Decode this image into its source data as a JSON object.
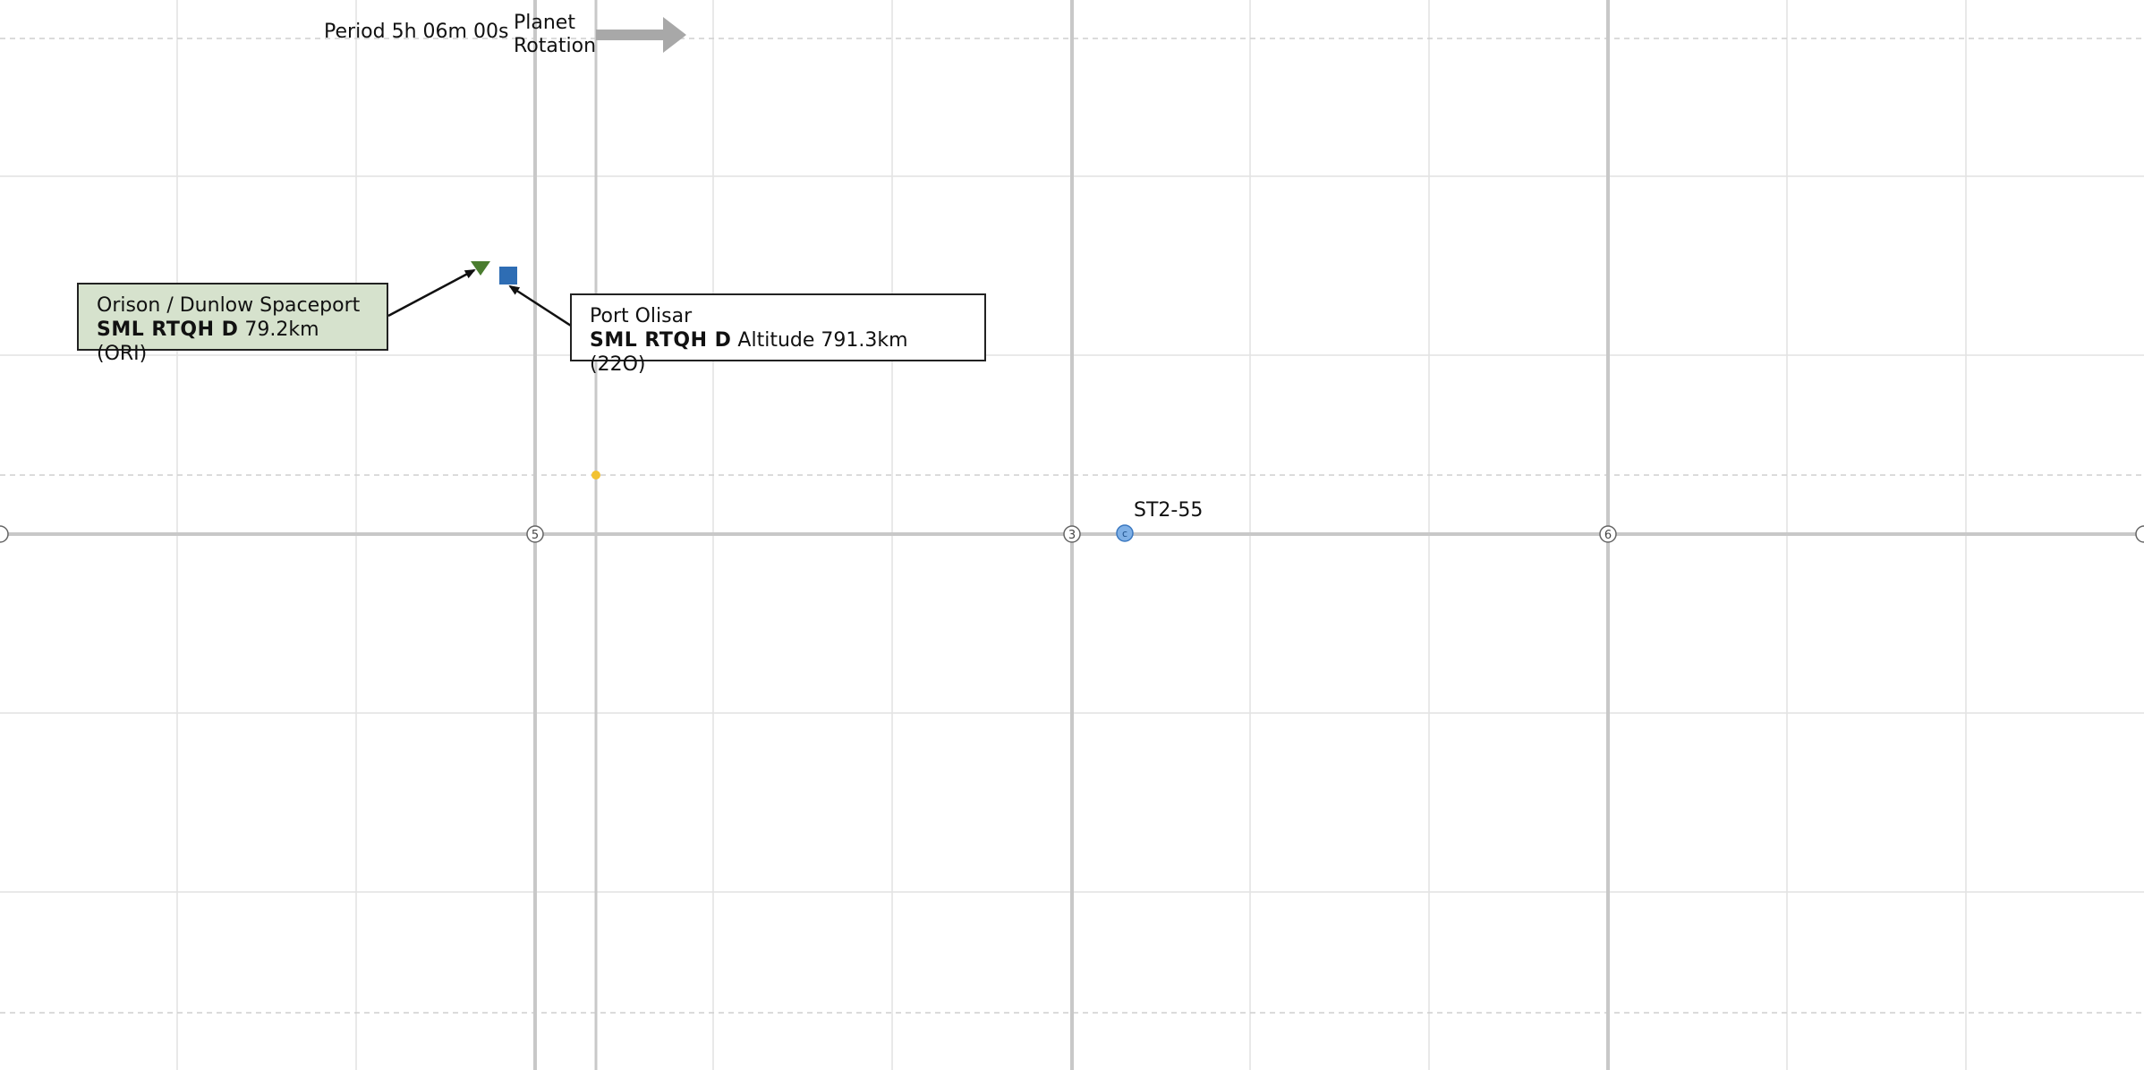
{
  "planet_info": {
    "period_text": "Period 5h 06m 00s",
    "rotation_label_line1": "Planet",
    "rotation_label_line2": "Rotation"
  },
  "axis_markers": [
    {
      "label": "",
      "name": "axis-marker-left-edge"
    },
    {
      "label": "5",
      "name": "axis-marker-5"
    },
    {
      "label": "3",
      "name": "axis-marker-3"
    },
    {
      "label": "6",
      "name": "axis-marker-6"
    },
    {
      "label": "",
      "name": "axis-marker-right-edge"
    }
  ],
  "locations": {
    "orison": {
      "name": "Orison / Dunlow Spaceport",
      "code": "SML RTQH D",
      "detail": "79.2km (ORI)",
      "marker_icon": "green-triangle-icon",
      "color": "#4a7c2f",
      "box_color": "#d6e2cd"
    },
    "olisar": {
      "name": "Port Olisar",
      "code": "SML RTQH D",
      "detail": "Altitude 791.3km (22O)",
      "marker_icon": "blue-square-icon",
      "color": "#2e6db4"
    },
    "st2_55": {
      "name": "ST2-55",
      "marker_icon": "blue-circle-icon",
      "marker_letter": "c",
      "color": "#7fb0e6"
    },
    "center_point": {
      "marker_icon": "yellow-dot-icon",
      "color": "#f2c230"
    }
  },
  "colors": {
    "grid_minor": "#e2e2e2",
    "grid_major": "#c8c8c8",
    "arrow": "#a8a8a8",
    "leader_line": "#111111"
  }
}
